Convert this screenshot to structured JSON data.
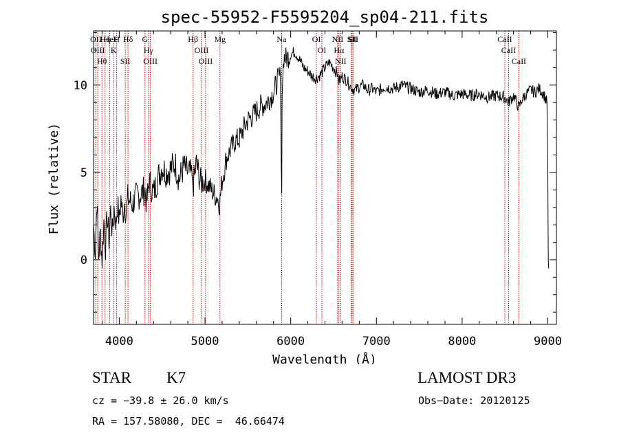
{
  "chart_data": {
    "type": "line",
    "title": "spec-55952-F5595204_sp04-211.fits",
    "xlabel": "Wavelength (Å)",
    "ylabel": "Flux (relative)",
    "xlim": [
      3700,
      9100
    ],
    "ylim": [
      -3.7,
      13.1
    ],
    "xticks": [
      4000,
      5000,
      6000,
      7000,
      8000,
      9000
    ],
    "yticks": [
      0,
      5,
      10
    ],
    "series": [
      {
        "name": "flux",
        "x": [
          3700,
          3720,
          3740,
          3760,
          3780,
          3800,
          3820,
          3840,
          3860,
          3880,
          3900,
          3920,
          3940,
          3960,
          3980,
          4000,
          4020,
          4040,
          4060,
          4080,
          4100,
          4150,
          4200,
          4250,
          4300,
          4320,
          4350,
          4400,
          4450,
          4500,
          4550,
          4600,
          4650,
          4700,
          4750,
          4800,
          4850,
          4860,
          4900,
          4950,
          5000,
          5050,
          5100,
          5150,
          5170,
          5200,
          5250,
          5300,
          5350,
          5400,
          5450,
          5500,
          5550,
          5600,
          5650,
          5700,
          5750,
          5800,
          5850,
          5880,
          5890,
          5896,
          5900,
          5920,
          5950,
          6000,
          6050,
          6100,
          6150,
          6200,
          6250,
          6300,
          6350,
          6400,
          6450,
          6500,
          6550,
          6563,
          6600,
          6650,
          6700,
          6750,
          6800,
          6850,
          6900,
          6950,
          7000,
          7100,
          7200,
          7300,
          7400,
          7500,
          7600,
          7700,
          7800,
          7900,
          8000,
          8100,
          8200,
          8300,
          8400,
          8500,
          8542,
          8600,
          8662,
          8700,
          8750,
          8800,
          8850,
          8900,
          8950,
          8990,
          9000,
          9005,
          9010
        ],
        "values": [
          2.0,
          0.5,
          3.5,
          0.2,
          1.5,
          0.0,
          2.2,
          0.8,
          2.5,
          1.2,
          2.8,
          1.5,
          3.0,
          2.0,
          3.2,
          2.2,
          3.5,
          2.5,
          3.3,
          2.7,
          3.5,
          3.2,
          3.6,
          3.8,
          4.0,
          3.2,
          4.5,
          3.8,
          4.7,
          5.3,
          5.0,
          5.2,
          5.5,
          4.6,
          5.3,
          5.0,
          4.8,
          4.2,
          5.5,
          4.4,
          4.6,
          4.2,
          3.8,
          3.5,
          3.2,
          4.5,
          5.8,
          6.3,
          6.8,
          6.9,
          7.5,
          8.0,
          8.2,
          8.5,
          8.8,
          8.9,
          9.2,
          9.6,
          10.3,
          10.5,
          5.5,
          3.8,
          10.0,
          11.6,
          11.5,
          11.8,
          11.9,
          11.5,
          11.0,
          10.8,
          10.5,
          10.4,
          10.6,
          11.0,
          11.3,
          11.0,
          10.6,
          10.2,
          10.5,
          10.3,
          9.9,
          9.7,
          9.9,
          10.0,
          9.7,
          9.8,
          9.6,
          9.9,
          9.8,
          10.0,
          9.8,
          9.6,
          9.7,
          9.5,
          9.6,
          9.4,
          9.5,
          9.4,
          9.5,
          9.3,
          9.4,
          9.3,
          9.0,
          9.4,
          8.7,
          9.2,
          9.5,
          9.7,
          9.6,
          9.8,
          9.5,
          9.0,
          5.0,
          0.0,
          -0.5
        ]
      }
    ],
    "lines": [
      {
        "wl": 3727,
        "labels": [
          "OII"
        ]
      },
      {
        "wl": 3750,
        "labels": [
          "OIII"
        ]
      },
      {
        "wl": 3798,
        "labels": [
          "Hθ"
        ]
      },
      {
        "wl": 3835,
        "labels": [
          "Hη"
        ]
      },
      {
        "wl": 3889,
        "labels": [
          "HeI"
        ]
      },
      {
        "wl": 3934,
        "labels": [
          "K"
        ]
      },
      {
        "wl": 3970,
        "labels": [
          "H"
        ]
      },
      {
        "wl": 4070,
        "labels": [
          "SII"
        ]
      },
      {
        "wl": 4102,
        "labels": [
          "Hδ"
        ]
      },
      {
        "wl": 4300,
        "labels": [
          "G"
        ]
      },
      {
        "wl": 4341,
        "labels": [
          "Hγ"
        ]
      },
      {
        "wl": 4363,
        "labels": [
          "OIII"
        ]
      },
      {
        "wl": 4861,
        "labels": [
          "Hβ"
        ]
      },
      {
        "wl": 4959,
        "labels": [
          "OIII"
        ]
      },
      {
        "wl": 5007,
        "labels": [
          "OIII"
        ]
      },
      {
        "wl": 5175,
        "labels": [
          "Mg"
        ]
      },
      {
        "wl": 5894,
        "labels": [
          "Na"
        ]
      },
      {
        "wl": 6300,
        "labels": [
          "OI"
        ]
      },
      {
        "wl": 6364,
        "labels": [
          "OI"
        ]
      },
      {
        "wl": 6548,
        "labels": [
          "NII"
        ]
      },
      {
        "wl": 6563,
        "labels": [
          "Hα"
        ]
      },
      {
        "wl": 6583,
        "labels": [
          "NII"
        ]
      },
      {
        "wl": 6708,
        "labels": [
          "Li"
        ]
      },
      {
        "wl": 6717,
        "labels": [
          "SII"
        ]
      },
      {
        "wl": 6731,
        "labels": [
          "SII"
        ]
      },
      {
        "wl": 8498,
        "labels": [
          "CaII"
        ]
      },
      {
        "wl": 8542,
        "labels": [
          "CaII"
        ]
      },
      {
        "wl": 8662,
        "labels": [
          "CaII"
        ]
      }
    ]
  },
  "info": {
    "class_label": "STAR",
    "subclass": "K7",
    "survey": "LAMOST DR3",
    "cz": "cz = −39.8 ± 26.0 km/s",
    "obs_date": "Obs−Date: 20120125",
    "coords": "RA = 157.58080, DEC =  46.66474"
  },
  "colors": {
    "spectrum": "#000000",
    "line_marker": "#c00000",
    "axes": "#000000"
  }
}
